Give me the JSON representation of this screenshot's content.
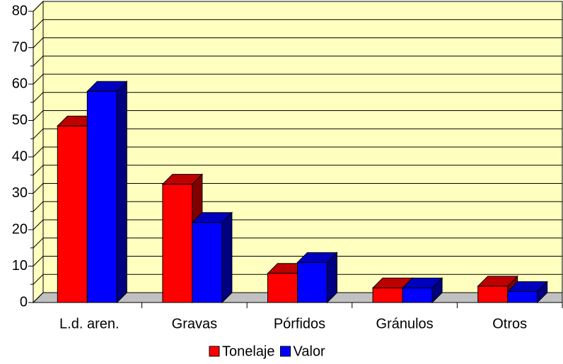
{
  "chart_data": {
    "type": "bar3d",
    "categories": [
      "L.d. aren.",
      "Gravas",
      "Pórfidos",
      "Gránulos",
      "Otros"
    ],
    "series": [
      {
        "name": "Tonelaje",
        "color": "#ff0000",
        "values": [
          48.5,
          32.5,
          8,
          4,
          4.5
        ]
      },
      {
        "name": "Valor",
        "color": "#0000ff",
        "values": [
          58,
          22,
          11,
          4,
          3
        ]
      }
    ],
    "ylim": [
      0,
      80
    ],
    "yticks": [
      0,
      10,
      20,
      30,
      40,
      50,
      60,
      70,
      80
    ],
    "minor_yticks": [
      5,
      15,
      25,
      35,
      45,
      55,
      65,
      75
    ],
    "grid": true,
    "legend": "bottom"
  }
}
